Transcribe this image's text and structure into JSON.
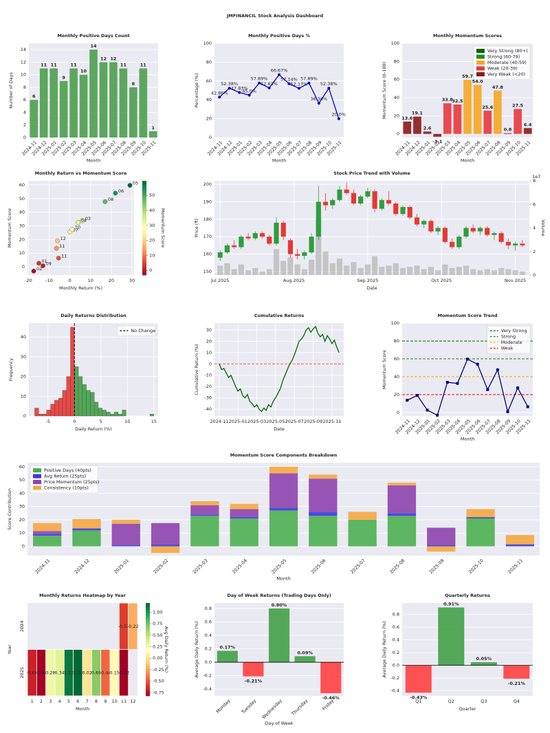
{
  "title": "JMFINANCIL Stock Analysis Dashboard",
  "chart_data": [
    {
      "type": "bar",
      "title": "Monthly Positive Days Count",
      "xlabel": "Month",
      "ylabel": "Number of Days",
      "categories": [
        "2024-11",
        "2024-12",
        "2025-01",
        "2025-02",
        "2025-03",
        "2025-04",
        "2025-05",
        "2025-06",
        "2025-07",
        "2025-08",
        "2025-09",
        "2025-10",
        "2025-11"
      ],
      "values": [
        6,
        11,
        11,
        9,
        11,
        10,
        14,
        12,
        12,
        11,
        8,
        11,
        1
      ],
      "color": "#4c9f4c",
      "data_labels": true,
      "ylim": [
        0,
        15
      ],
      "yticks": [
        0,
        2,
        4,
        6,
        8,
        10,
        12,
        14
      ],
      "grid": true
    },
    {
      "type": "line",
      "title": "Monthly Positive Days %",
      "xlabel": "Month",
      "ylabel": "Percentage (%)",
      "categories": [
        "2024-11",
        "2024-12",
        "2025-01",
        "2025-02",
        "2025-03",
        "2025-04",
        "2025-05",
        "2025-06",
        "2025-07",
        "2025-08",
        "2025-09",
        "2025-10",
        "2025-11"
      ],
      "values": [
        42.86,
        52.38,
        47.83,
        45,
        57.89,
        52.63,
        66.67,
        57.14,
        52.17,
        57.89,
        36.36,
        52.38,
        20
      ],
      "value_labels": [
        "42.86%",
        "52.38%",
        "47.83%",
        "45.0%",
        "57.89%",
        "52.63%",
        "66.67%",
        "57.14%",
        "52.17%",
        "57.89%",
        "36.36%",
        "52.38%",
        "20.0%"
      ],
      "color": "#0000cc",
      "marker": "circle",
      "ylim": [
        0,
        100
      ],
      "yticks": [
        0,
        20,
        40,
        60,
        80,
        100
      ],
      "grid": true
    },
    {
      "type": "bar",
      "title": "Monthly Momentum Scores",
      "xlabel": "Month",
      "ylabel": "Momentum Score (0-100)",
      "categories": [
        "2024-11",
        "2024-12",
        "2025-01",
        "2025-02",
        "2025-03",
        "2025-04",
        "2025-05",
        "2025-06",
        "2025-07",
        "2025-08",
        "2025-09",
        "2025-10",
        "2025-11"
      ],
      "values": [
        13.6,
        19.1,
        2.6,
        -3.1,
        33.8,
        32.5,
        59.7,
        54,
        25.6,
        47.8,
        0.8,
        27.5,
        6.4
      ],
      "value_labels": [
        "13.6",
        "19.1",
        "2.6",
        "-3.1",
        "33.8",
        "32.5",
        "59.7",
        "54.0",
        "25.6",
        "47.8",
        "0.8",
        "27.5",
        "6.4"
      ],
      "colors": [
        "#8b1a1a",
        "#8b1a1a",
        "#8b1a1a",
        "#8b1a1a",
        "#e8383d",
        "#e8383d",
        "#f5a623",
        "#f5a623",
        "#e8383d",
        "#f5a623",
        "#8b1a1a",
        "#e8383d",
        "#8b1a1a"
      ],
      "legend": {
        "position": "upper right",
        "items": [
          {
            "label": "Very Strong (80+)",
            "color": "#006400"
          },
          {
            "label": "Strong (60-79)",
            "color": "#228b22"
          },
          {
            "label": "Moderate (40-59)",
            "color": "#f5a623"
          },
          {
            "label": "Weak (20-39)",
            "color": "#e8383d"
          },
          {
            "label": "Very Weak (<20)",
            "color": "#8b1a1a"
          }
        ]
      },
      "ylim": [
        -4,
        100
      ],
      "yticks": [
        0,
        20,
        40,
        60,
        80,
        100
      ],
      "grid": true
    },
    {
      "type": "scatter",
      "title": "Monthly Return vs Momentum Score",
      "xlabel": "Monthly Return (%)",
      "ylabel": "Momentum Score",
      "x": [
        -6.5,
        -6,
        -15,
        -17.5,
        6,
        4,
        29,
        22,
        0,
        17,
        -13,
        1,
        -5.5
      ],
      "y": [
        13.6,
        19.1,
        2.6,
        -3.1,
        33.8,
        32.5,
        59.7,
        54,
        25.6,
        47.8,
        0.8,
        27.5,
        6.4
      ],
      "point_labels": [
        "11",
        "12",
        "01",
        "02",
        "03",
        "04",
        "05",
        "06",
        "07",
        "08",
        "09",
        "10",
        "11"
      ],
      "colormap": "RdYlGn",
      "colorbar": {
        "label": "Momentum Score",
        "ticks": [
          0,
          10,
          20,
          30,
          40,
          50
        ]
      },
      "xlim": [
        -20.5,
        31
      ],
      "xticks": [
        -20,
        -10,
        0,
        10,
        20,
        30
      ],
      "ylim": [
        -6,
        63
      ],
      "yticks": [
        0,
        10,
        20,
        30,
        40,
        50,
        60
      ],
      "grid": true
    },
    {
      "type": "candlestick",
      "title": "Stock Price Trend with Volume",
      "xlabel": "Date",
      "ylabel": "Price (₹)",
      "ylabel_color": "#990099",
      "y2label": "Volume",
      "y2_offset_label": "1e7",
      "open": [
        158,
        161,
        165,
        164,
        170,
        169,
        172,
        170,
        166,
        178,
        168,
        160,
        159,
        161,
        170,
        190,
        188,
        191,
        197,
        195,
        189,
        193,
        196,
        186,
        191,
        189,
        183,
        187,
        181,
        177,
        179,
        173,
        175,
        167,
        164,
        170,
        175,
        173,
        175,
        171,
        172,
        167,
        165,
        166
      ],
      "high": [
        162,
        166,
        168,
        171,
        172,
        173,
        173,
        171,
        181,
        179,
        169,
        163,
        162,
        172,
        199,
        195,
        192,
        199,
        201,
        197,
        194,
        198,
        197,
        192,
        196,
        190,
        188,
        188,
        183,
        180,
        180,
        176,
        176,
        169,
        171,
        176,
        177,
        176,
        176,
        173,
        173,
        169,
        167,
        168
      ],
      "low": [
        156,
        160,
        163,
        163,
        168,
        168,
        169,
        165,
        165,
        168,
        158,
        157,
        157,
        160,
        168,
        185,
        186,
        190,
        194,
        188,
        188,
        192,
        184,
        185,
        188,
        182,
        182,
        180,
        176,
        175,
        172,
        171,
        166,
        163,
        163,
        169,
        172,
        171,
        170,
        168,
        166,
        163,
        162,
        164
      ],
      "close": [
        161,
        165,
        164,
        170,
        169,
        172,
        170,
        166,
        178,
        170,
        160,
        159,
        161,
        170,
        190,
        188,
        191,
        197,
        195,
        189,
        193,
        196,
        186,
        191,
        189,
        183,
        187,
        181,
        177,
        179,
        173,
        175,
        167,
        164,
        170,
        175,
        173,
        175,
        171,
        172,
        167,
        165,
        166,
        165
      ],
      "volume": [
        0.8,
        1.0,
        0.5,
        0.9,
        0.4,
        0.6,
        0.3,
        0.5,
        2.2,
        1.2,
        1.5,
        0.9,
        0.5,
        1.3,
        4.8,
        2.0,
        1.0,
        1.4,
        0.8,
        1.1,
        0.6,
        0.9,
        1.6,
        0.7,
        0.8,
        1.0,
        0.6,
        0.7,
        0.8,
        0.5,
        0.7,
        0.4,
        0.9,
        0.6,
        0.7,
        0.8,
        0.5,
        0.4,
        0.5,
        0.4,
        0.6,
        0.5,
        0.4,
        0.3
      ],
      "up_color": "#2e9e3e",
      "down_color": "#e53935",
      "volume_color": "#aaaaaa",
      "xlim": [
        -0.8,
        44
      ],
      "xticks": [
        {
          "value": 0,
          "label": "Jul 2025"
        },
        {
          "value": 10.5,
          "label": "Aug 2025"
        },
        {
          "value": 21,
          "label": "Sep 2025"
        },
        {
          "value": 31.5,
          "label": "Oct 2025"
        },
        {
          "value": 42,
          "label": "Nov 2025"
        }
      ],
      "ylim": [
        148,
        202
      ],
      "yticks": [
        150,
        160,
        170,
        180,
        190,
        200
      ],
      "y2lim": [
        0,
        8
      ],
      "y2ticks": [
        0,
        2,
        4,
        6,
        8
      ],
      "grid": true
    },
    {
      "type": "histogram",
      "title": "Daily Returns Distribution",
      "xlabel": "Daily Return (%)",
      "ylabel": "Frequency",
      "bins": [
        -7.5,
        -6.75,
        -6,
        -5.25,
        -4.5,
        -3.75,
        -3,
        -2.25,
        -1.5,
        -0.75,
        0,
        0.75,
        1.5,
        2.25,
        3,
        3.75,
        4.5,
        5.25,
        6,
        6.75,
        7.5,
        8.25,
        9,
        9.75,
        10.5,
        11.25,
        12,
        12.75,
        13.5,
        14.25,
        15
      ],
      "counts": [
        4,
        1,
        1,
        3,
        6,
        8,
        9,
        13,
        20,
        45,
        25,
        20,
        16,
        13,
        12,
        7,
        4,
        3,
        2,
        1,
        2,
        1,
        3,
        0,
        0,
        0,
        0,
        0,
        0,
        1
      ],
      "neg_color": "#e53935",
      "pos_color": "#43a047",
      "vline": {
        "x": 0,
        "label": "No Change",
        "color": "#000000"
      },
      "legend": "upper right",
      "xlim": [
        -8.6,
        15.8
      ],
      "xticks": [
        -5,
        0,
        5,
        10,
        15
      ],
      "ylim": [
        0,
        47
      ],
      "yticks": [
        0,
        10,
        20,
        30,
        40
      ],
      "grid": true
    },
    {
      "type": "line",
      "title": "Cumulative Returns",
      "xlabel": "Date",
      "ylabel": "Cumulative Return (%)",
      "values": [
        0,
        -5,
        -4,
        -8,
        -12,
        -10,
        -15,
        -20,
        -24,
        -22,
        -28,
        -30,
        -27,
        -33,
        -35,
        -38,
        -36,
        -40,
        -42,
        -39,
        -41,
        -36,
        -38,
        -33,
        -30,
        -26,
        -22,
        -15,
        -10,
        -5,
        0,
        3,
        8,
        14,
        20,
        22,
        25,
        30,
        32,
        28,
        31,
        33,
        27,
        24,
        26,
        20,
        25,
        22,
        18,
        21,
        15,
        10
      ],
      "color": "#006400",
      "hline": {
        "y": 0,
        "color": "#ff5555",
        "linestyle": "dashed"
      },
      "xlim": [
        -2,
        53
      ],
      "xticks": [
        {
          "value": 0,
          "label": "2024-11"
        },
        {
          "value": 8,
          "label": "2025-01"
        },
        {
          "value": 16,
          "label": "2025-03"
        },
        {
          "value": 24,
          "label": "2025-05"
        },
        {
          "value": 32,
          "label": "2025-07"
        },
        {
          "value": 40,
          "label": "2025-09"
        },
        {
          "value": 48,
          "label": "2025-11"
        }
      ],
      "ylim": [
        -46,
        36
      ],
      "yticks": [
        -40,
        -30,
        -20,
        -10,
        0,
        10,
        20,
        30
      ],
      "grid": true
    },
    {
      "type": "line",
      "title": "Momentum Score Trend",
      "xlabel": "Month",
      "ylabel": "Momentum Score",
      "categories": [
        "2024-11",
        "2024-12",
        "2025-01",
        "2025-02",
        "2025-03",
        "2025-04",
        "2025-05",
        "2025-06",
        "2025-07",
        "2025-08",
        "2025-09",
        "2025-10",
        "2025-11"
      ],
      "values": [
        13.6,
        19.1,
        2.6,
        -3.1,
        33.8,
        32.5,
        59.7,
        54,
        25.6,
        47.8,
        0.8,
        27.5,
        6.4
      ],
      "color": "#000080",
      "marker": "square",
      "hlines": [
        {
          "y": 80,
          "label": "Very Strong",
          "color": "#006400"
        },
        {
          "y": 60,
          "label": "Strong",
          "color": "#228b22"
        },
        {
          "y": 40,
          "label": "Moderate",
          "color": "#ffa500"
        },
        {
          "y": 20,
          "label": "Weak",
          "color": "#ff0000"
        }
      ],
      "legend": "upper right",
      "ylim": [
        -4,
        100
      ],
      "yticks": [
        0,
        20,
        40,
        60,
        80,
        100
      ],
      "grid": true
    },
    {
      "type": "stacked_bar",
      "title": "Momentum Score Components Breakdown",
      "xlabel": "Month",
      "ylabel": "Score Contribution",
      "categories": [
        "2024-11",
        "2024-12",
        "2025-01",
        "2025-02",
        "2025-03",
        "2025-04",
        "2025-05",
        "2025-06",
        "2025-07",
        "2025-08",
        "2025-09",
        "2025-10",
        "2025-11"
      ],
      "series": [
        {
          "name": "Positive Days (40pts)",
          "color": "#4caf50",
          "values": [
            8,
            12,
            0,
            0,
            23,
            21,
            27,
            23,
            20,
            23,
            0,
            21,
            0
          ]
        },
        {
          "name": "Avg Return (25pts)",
          "color": "#3a3adf",
          "values": [
            1.5,
            1.5,
            1,
            1.5,
            1,
            1,
            2,
            3,
            0,
            2,
            1,
            1,
            1.5
          ]
        },
        {
          "name": "Price Momentum (25pts)",
          "color": "#8e44ad",
          "values": [
            2,
            0,
            16,
            16,
            7,
            6,
            26,
            25,
            0,
            21,
            13,
            0,
            0
          ]
        },
        {
          "name": "Consistency (10pts)",
          "color": "#f5a742",
          "values": [
            6,
            7,
            3,
            -5,
            3,
            4,
            5,
            3,
            6,
            2,
            -4,
            6,
            7
          ]
        }
      ],
      "legend": "upper left",
      "ylim": [
        -7,
        63
      ],
      "yticks": [
        0,
        10,
        20,
        30,
        40,
        50,
        60
      ],
      "grid": true
    },
    {
      "type": "heatmap",
      "title": "Monthly Returns Heatmap by Year",
      "xlabel": "Month",
      "ylabel": "Year",
      "rows": [
        "2024",
        "2025"
      ],
      "columns": [
        1,
        2,
        3,
        4,
        5,
        6,
        7,
        8,
        9,
        10,
        11,
        12
      ],
      "values": [
        [
          null,
          null,
          null,
          null,
          null,
          null,
          null,
          null,
          null,
          null,
          -0.57,
          -0.22
        ],
        [
          -0.68,
          -0.82,
          0.28,
          0.34,
          1.13,
          1.2,
          0.02,
          0.69,
          -0.44,
          0.15,
          -0.82,
          null
        ]
      ],
      "value_labels": [
        [
          null,
          null,
          null,
          null,
          null,
          null,
          null,
          null,
          null,
          null,
          "-0.57",
          "-0.22"
        ],
        [
          "-0.68",
          "-0.82",
          "0.28",
          "0.34",
          "1.13",
          "1.20",
          "0.02",
          "0.69",
          "-0.44",
          "0.15",
          "-0.82",
          null
        ]
      ],
      "colormap": "RdYlGn",
      "colorbar": {
        "label": "Avg Daily Return (%)",
        "ticks": [
          {
            "value": -0.75,
            "label": "-0.75"
          },
          {
            "value": -0.5,
            "label": "-0.50"
          },
          {
            "value": -0.25,
            "label": "-0.25"
          },
          {
            "value": 0,
            "label": "0.00"
          },
          {
            "value": 0.25,
            "label": "0.25"
          },
          {
            "value": 0.5,
            "label": "0.50"
          },
          {
            "value": 0.75,
            "label": "0.75"
          },
          {
            "value": 1,
            "label": "1.00"
          }
        ]
      }
    },
    {
      "type": "bar",
      "title": "Day of Week Returns (Trading Days Only)",
      "xlabel": "Day of Week",
      "ylabel": "Average Daily Return (%)",
      "categories": [
        "Monday",
        "Tuesday",
        "Wednesday",
        "Thursday",
        "Friday"
      ],
      "values": [
        0.17,
        -0.21,
        0.8,
        0.09,
        -0.46
      ],
      "value_labels": [
        "0.17%",
        "-0.21%",
        "0.80%",
        "0.09%",
        "-0.46%"
      ],
      "pos_color": "#43a047",
      "neg_color": "#ff4040",
      "hline": {
        "y": 0,
        "color": "#000000"
      },
      "ylim": [
        -0.5,
        0.88
      ],
      "yticks": [
        -0.4,
        -0.2,
        {
          "value": 0,
          "label": "0.0"
        },
        0.2,
        0.4,
        0.6,
        0.8
      ],
      "grid": true
    },
    {
      "type": "bar",
      "title": "Quarterly Returns",
      "xlabel": "Quarter",
      "ylabel": "Average Daily Return (%)",
      "categories": [
        "Q1",
        "Q2",
        "Q3",
        "Q4"
      ],
      "values": [
        -0.43,
        0.91,
        0.05,
        -0.21
      ],
      "value_labels": [
        "-0.43%",
        "0.91%",
        "0.05%",
        "-0.21%"
      ],
      "pos_color": "#43a047",
      "neg_color": "#ff4040",
      "hline": {
        "y": 0,
        "color": "#000000"
      },
      "ylim": [
        -0.48,
        0.98
      ],
      "yticks": [
        -0.4,
        -0.2,
        {
          "value": 0,
          "label": "0.0"
        },
        0.2,
        0.4,
        0.6,
        0.8
      ],
      "grid": true
    }
  ]
}
